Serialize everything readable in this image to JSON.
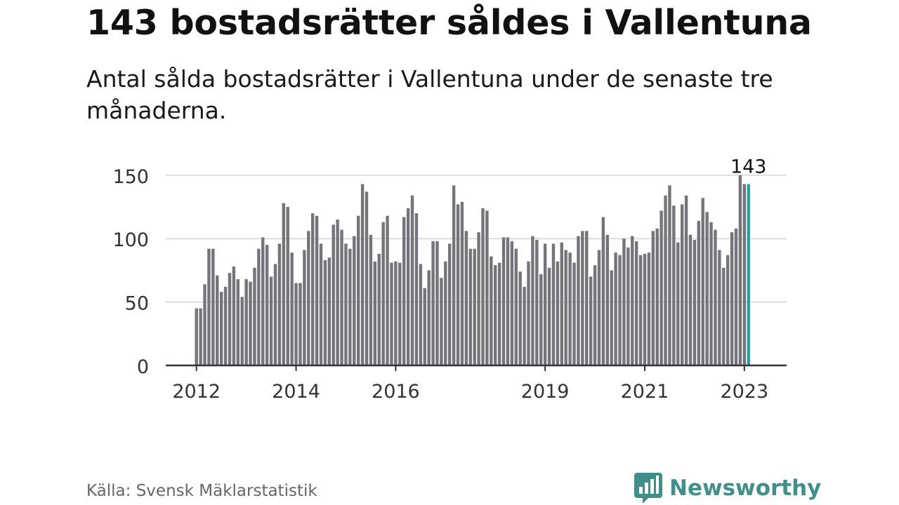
{
  "title": "143 bostadsrätter såldes i Vallentuna",
  "subtitle": "Antal sålda bostadsrätter i Vallentuna under de senaste tre månaderna.",
  "source": "Källa: Svensk Mäklarstatistik",
  "brand": {
    "name": "Newsworthy",
    "icon": "newsworthy-logo-icon",
    "color": "#3f8f8a"
  },
  "colors": {
    "bar": "#75747a",
    "highlight": "#1fa5a5",
    "grid": "#dddddd",
    "axis": "#333333",
    "text": "#111111"
  },
  "chart_data": {
    "type": "bar",
    "title": "",
    "xlabel": "",
    "ylabel": "",
    "ylim": [
      0,
      160
    ],
    "y_ticks": [
      0,
      50,
      100,
      150
    ],
    "grid": true,
    "x_start": "2012-01",
    "x_tick_labels": [
      {
        "label": "2012",
        "period": "2012-01"
      },
      {
        "label": "2014",
        "period": "2014-01"
      },
      {
        "label": "2016",
        "period": "2016-01"
      },
      {
        "label": "2019",
        "period": "2019-01"
      },
      {
        "label": "2021",
        "period": "2021-01"
      },
      {
        "label": "2023",
        "period": "2023-01"
      }
    ],
    "values": [
      45,
      45,
      64,
      92,
      92,
      71,
      58,
      62,
      73,
      78,
      68,
      54,
      68,
      66,
      77,
      92,
      101,
      95,
      70,
      80,
      96,
      128,
      125,
      89,
      65,
      65,
      91,
      106,
      120,
      118,
      96,
      83,
      85,
      111,
      115,
      107,
      96,
      92,
      102,
      118,
      143,
      137,
      103,
      82,
      88,
      113,
      118,
      81,
      82,
      81,
      117,
      124,
      134,
      120,
      80,
      61,
      75,
      98,
      98,
      69,
      82,
      96,
      142,
      127,
      129,
      106,
      92,
      92,
      105,
      124,
      122,
      86,
      79,
      81,
      101,
      101,
      98,
      92,
      74,
      62,
      82,
      102,
      99,
      72,
      96,
      77,
      96,
      82,
      97,
      91,
      89,
      81,
      102,
      106,
      106,
      70,
      79,
      91,
      117,
      103,
      75,
      89,
      87,
      100,
      93,
      102,
      98,
      87,
      88,
      89,
      106,
      108,
      122,
      134,
      142,
      126,
      97,
      127,
      134,
      103,
      99,
      114,
      132,
      121,
      113,
      107,
      91,
      77,
      87,
      105,
      108,
      150,
      143,
      143
    ],
    "highlight_last": 1,
    "annotation": {
      "label": "143",
      "value": 143
    }
  }
}
